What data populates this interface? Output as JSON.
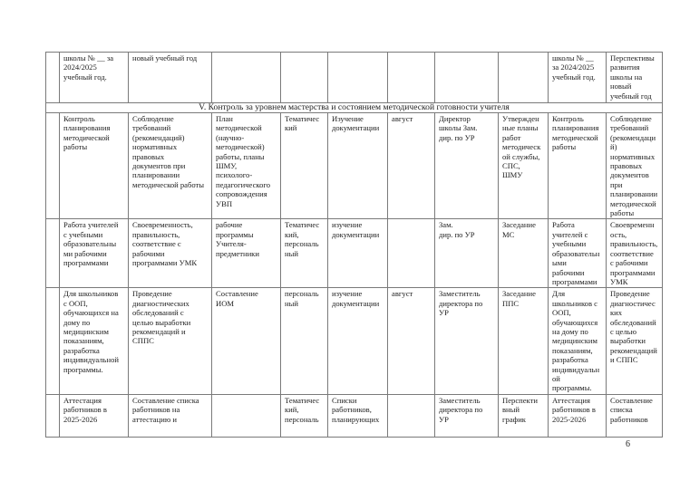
{
  "section_title": "V. Контроль за уровнем мастерства и состоянием методической готовности учителя",
  "rows_before": [
    [
      "",
      "школы № __ за\n2024/2025\nучебный год.",
      "новый учебный год",
      "",
      "",
      "",
      "",
      "",
      "",
      "школы № __\nза 2024/2025\nучебный год.",
      "Перспективы\nразвития\nшколы на\nновый\nучебный год"
    ]
  ],
  "rows_after": [
    [
      "",
      "Контроль\nпланирования\nметодической\nработы",
      "Соблюдение\nтребований\n(рекомендаций)\nнормативных\nправовых\nдокументов при\nпланировании\nметодической работы",
      "План\nметодической\n(научно-\nметодической)\nработы, планы\nШМУ,\nпсихолого-\nпедагогического\nсопровождения\nУВП",
      "Тематичес\nкий",
      "Изучение\nдокументации",
      "август",
      "Директор\nшколы Зам.\nдир. по УР",
      "Утвержден\nные планы\nработ\nметодическ\nой службы,\nСПС,\nШМУ",
      "Контроль\nпланирования\nметодической\nработы",
      "Соблюдение\nтребований\n(рекомендаци\nй)\nнормативных\nправовых\nдокументов\nпри\nпланировании\nметодической\nработы"
    ],
    [
      "",
      "Работа учителей\nс учебными\nобразовательны\nми рабочими\nпрограммами",
      "Своевременность,\nправильность,\nсоответствие с\nрабочими\nпрограммами УМК",
      " рабочие\nпрограммы\nУчителя-\nпредметники",
      "Тематичес\nкий,\nперсональ\nный",
      "изучение\nдокументации",
      "",
      "Зам.\nдир. по УР",
      "Заседание\nМС",
      "Работа\nучителей с\nучебными\nобразовательн\nыми\nрабочими\nпрограммами",
      "Своевременн\nость,\nправильность,\nсоответствие\nс рабочими\nпрограммами\nУМК"
    ],
    [
      "",
      "Для школьников\nс ООП,\nобучающихся на\nдому по\nмедицинским\nпоказаниям,\nразработка\nиндивидуальной\nпрограммы.",
      "Проведение\nдиагностических\nобследований с\nцелью выработки\nрекомендаций и\nСППС",
      "Составление\nИОМ",
      "персональ\nный",
      "изучение\nдокументации",
      "август",
      "Заместитель\nдиректора по\nУР",
      "Заседание\nППС",
      "Для\nшкольников с\nООП,\nобучающихся\nна дому по\nмедицинским\nпоказаниям,\nразработка\nиндивидуальн\nой\nпрограммы.",
      "Проведение\nдиагностичес\nких\nобследований\nс целью\nвыработки\nрекомендаций\nи СППС"
    ],
    [
      "",
      "Аттестация\nработников в\n2025-2026",
      "Составление списка\nработников на\nаттестацию и",
      "",
      "Тематичес\nкий,\nперсональ",
      "Списки\nработников,\nпланирующих",
      "",
      "Заместитель\nдиректора по\nУР",
      "Перспекти\nвный\nграфик",
      "Аттестация\nработников в\n2025-2026",
      "Составление\nсписка\nработников"
    ]
  ],
  "page_number": "6"
}
